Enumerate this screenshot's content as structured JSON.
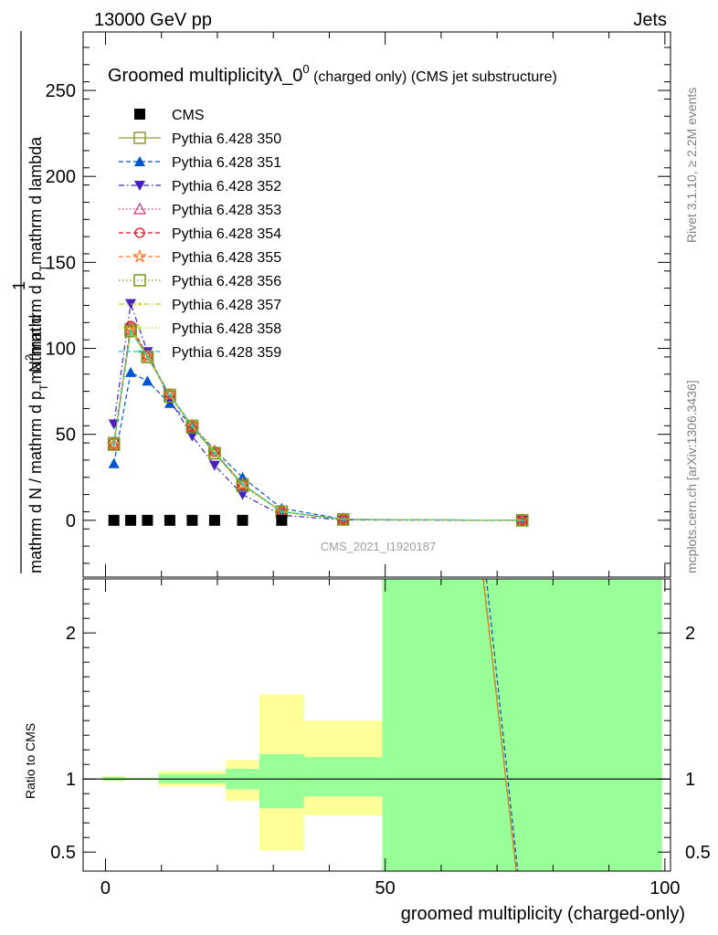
{
  "header": {
    "left": "13000 GeV pp",
    "right": "Jets"
  },
  "side_labels": {
    "rivet": "Rivet 3.1.10, ≥ 2.2M events",
    "mcplots": "mcplots.cern.ch [arXiv:1306.3436]"
  },
  "colors": {
    "band_yellow": "#ffff99",
    "band_green": "#99ff99",
    "cms": "#000000"
  },
  "chart_data": [
    {
      "type": "line",
      "title": "Groomed multiplicityλ_0⁰ (charged only) (CMS jet substructure)",
      "title_main": "Groomed multiplicityλ_0",
      "title_sup": "0",
      "title_rest": " (charged only) (CMS jet substructure)",
      "ylabel": "1 / mathrm d N / mathrm d p_T mathrm d^2N / mathrm d p_T mathrm d lambda",
      "ylabel_parts": [
        "1",
        "mathrm d N / mathrm d p",
        "T",
        "mathrm d",
        "2",
        "N",
        "mathrm d p",
        "T",
        "mathrm d lambda"
      ],
      "watermark": "CMS_2021_I1920187",
      "xlim": [
        -4,
        101
      ],
      "ylim": [
        -33,
        284
      ],
      "yticks": [
        0,
        50,
        100,
        150,
        200,
        250
      ],
      "legend_position": "top-left",
      "x": [
        1.5,
        4.5,
        7.5,
        11.5,
        15.5,
        19.5,
        24.5,
        31.5,
        42.5,
        74.5
      ],
      "series": [
        {
          "name": "CMS",
          "color": "#000000",
          "marker": "square-filled",
          "dash": "none",
          "values": [
            0,
            0,
            0,
            0,
            0,
            0,
            0,
            0,
            null,
            null
          ]
        },
        {
          "name": "Pythia 6.428 350",
          "color": "#999933",
          "marker": "square-open",
          "dash": "solid",
          "values": [
            45,
            111,
            95,
            73,
            55,
            39,
            21,
            5,
            0.5,
            0
          ]
        },
        {
          "name": "Pythia 6.428 351",
          "color": "#0055cc",
          "marker": "triangle-up-filled",
          "dash": "dashed",
          "values": [
            33,
            86,
            81,
            68,
            55,
            41,
            25,
            7,
            0.6,
            0
          ]
        },
        {
          "name": "Pythia 6.428 352",
          "color": "#4422bb",
          "marker": "triangle-down-filled",
          "dash": "dashdot",
          "values": [
            56,
            126,
            98,
            70,
            49,
            32,
            15,
            3,
            0.2,
            0
          ]
        },
        {
          "name": "Pythia 6.428 353",
          "color": "#cc3377",
          "marker": "triangle-up-open",
          "dash": "dotted",
          "values": [
            44,
            112,
            96,
            73,
            55,
            40,
            21,
            5,
            0.5,
            0
          ]
        },
        {
          "name": "Pythia 6.428 354",
          "color": "#dd1122",
          "marker": "circle-open",
          "dash": "dashed",
          "values": [
            45,
            113,
            96,
            73,
            55,
            40,
            21,
            5,
            0.5,
            0
          ]
        },
        {
          "name": "Pythia 6.428 355",
          "color": "#ff7722",
          "marker": "star-open",
          "dash": "dashed",
          "values": [
            44,
            111,
            95,
            73,
            55,
            40,
            21,
            5,
            0.5,
            0
          ]
        },
        {
          "name": "Pythia 6.428 356",
          "color": "#779911",
          "marker": "square-open",
          "dash": "dotted",
          "values": [
            44,
            110,
            95,
            72,
            54,
            39,
            20,
            5,
            0.5,
            0
          ]
        },
        {
          "name": "Pythia 6.428 357",
          "color": "#cccc11",
          "marker": "dot",
          "dash": "dashdot",
          "values": [
            44,
            111,
            96,
            73,
            55,
            40,
            21,
            5,
            0.5,
            0
          ]
        },
        {
          "name": "Pythia 6.428 358",
          "color": "#bbee22",
          "marker": "dot",
          "dash": "dotted",
          "values": [
            44,
            110,
            95,
            73,
            55,
            40,
            21,
            5,
            0.5,
            0
          ]
        },
        {
          "name": "Pythia 6.428 359",
          "color": "#22ccaa",
          "marker": "dot",
          "dash": "dashed",
          "values": [
            44,
            110,
            95,
            73,
            55,
            39,
            21,
            5,
            0.5,
            0
          ]
        }
      ]
    },
    {
      "type": "area",
      "ylabel": "Ratio to CMS",
      "xlabel": "groomed multiplicity (charged-only)",
      "xlim": [
        -4,
        101
      ],
      "ylim": [
        0.37,
        2.37
      ],
      "yticks": [
        0.5,
        1,
        2
      ],
      "ytick_labels": [
        "0.5",
        "1",
        "2"
      ],
      "xticks": [
        0,
        50,
        100
      ],
      "reference_line": 1,
      "bins": [
        {
          "x0": -0.5,
          "x1": 3.5,
          "yellow": [
            0.985,
            1.02
          ],
          "green": [
            0.99,
            1.015
          ]
        },
        {
          "x0": 3.5,
          "x1": 9.5,
          "yellow": [
            0.993,
            1.01
          ],
          "green": [
            0.995,
            1.008
          ]
        },
        {
          "x0": 9.5,
          "x1": 21.5,
          "yellow": [
            0.95,
            1.055
          ],
          "green": [
            0.97,
            1.035
          ]
        },
        {
          "x0": 21.5,
          "x1": 27.5,
          "yellow": [
            0.85,
            1.13
          ],
          "green": [
            0.93,
            1.07
          ]
        },
        {
          "x0": 27.5,
          "x1": 35.5,
          "yellow": [
            0.51,
            1.58
          ],
          "green": [
            0.8,
            1.17
          ]
        },
        {
          "x0": 35.5,
          "x1": 49.5,
          "yellow": [
            0.75,
            1.4
          ],
          "green": [
            0.88,
            1.15
          ]
        },
        {
          "x0": 49.5,
          "x1": 99.5,
          "yellow": [
            0.37,
            2.37
          ],
          "green": [
            0.37,
            2.37
          ]
        }
      ],
      "ratio_lines": [
        {
          "color": "#0055cc",
          "dash": "dashed",
          "points": [
            [
              68.1,
              2.37
            ],
            [
              73.7,
              0.37
            ]
          ]
        },
        {
          "color": "#999933",
          "dash": "solid",
          "points": [
            [
              67.5,
              2.37
            ],
            [
              73.4,
              0.37
            ]
          ]
        },
        {
          "color": "#ff7722",
          "dash": "dashed",
          "points": [
            [
              67.6,
              2.37
            ],
            [
              73.5,
              0.37
            ]
          ]
        }
      ]
    }
  ]
}
